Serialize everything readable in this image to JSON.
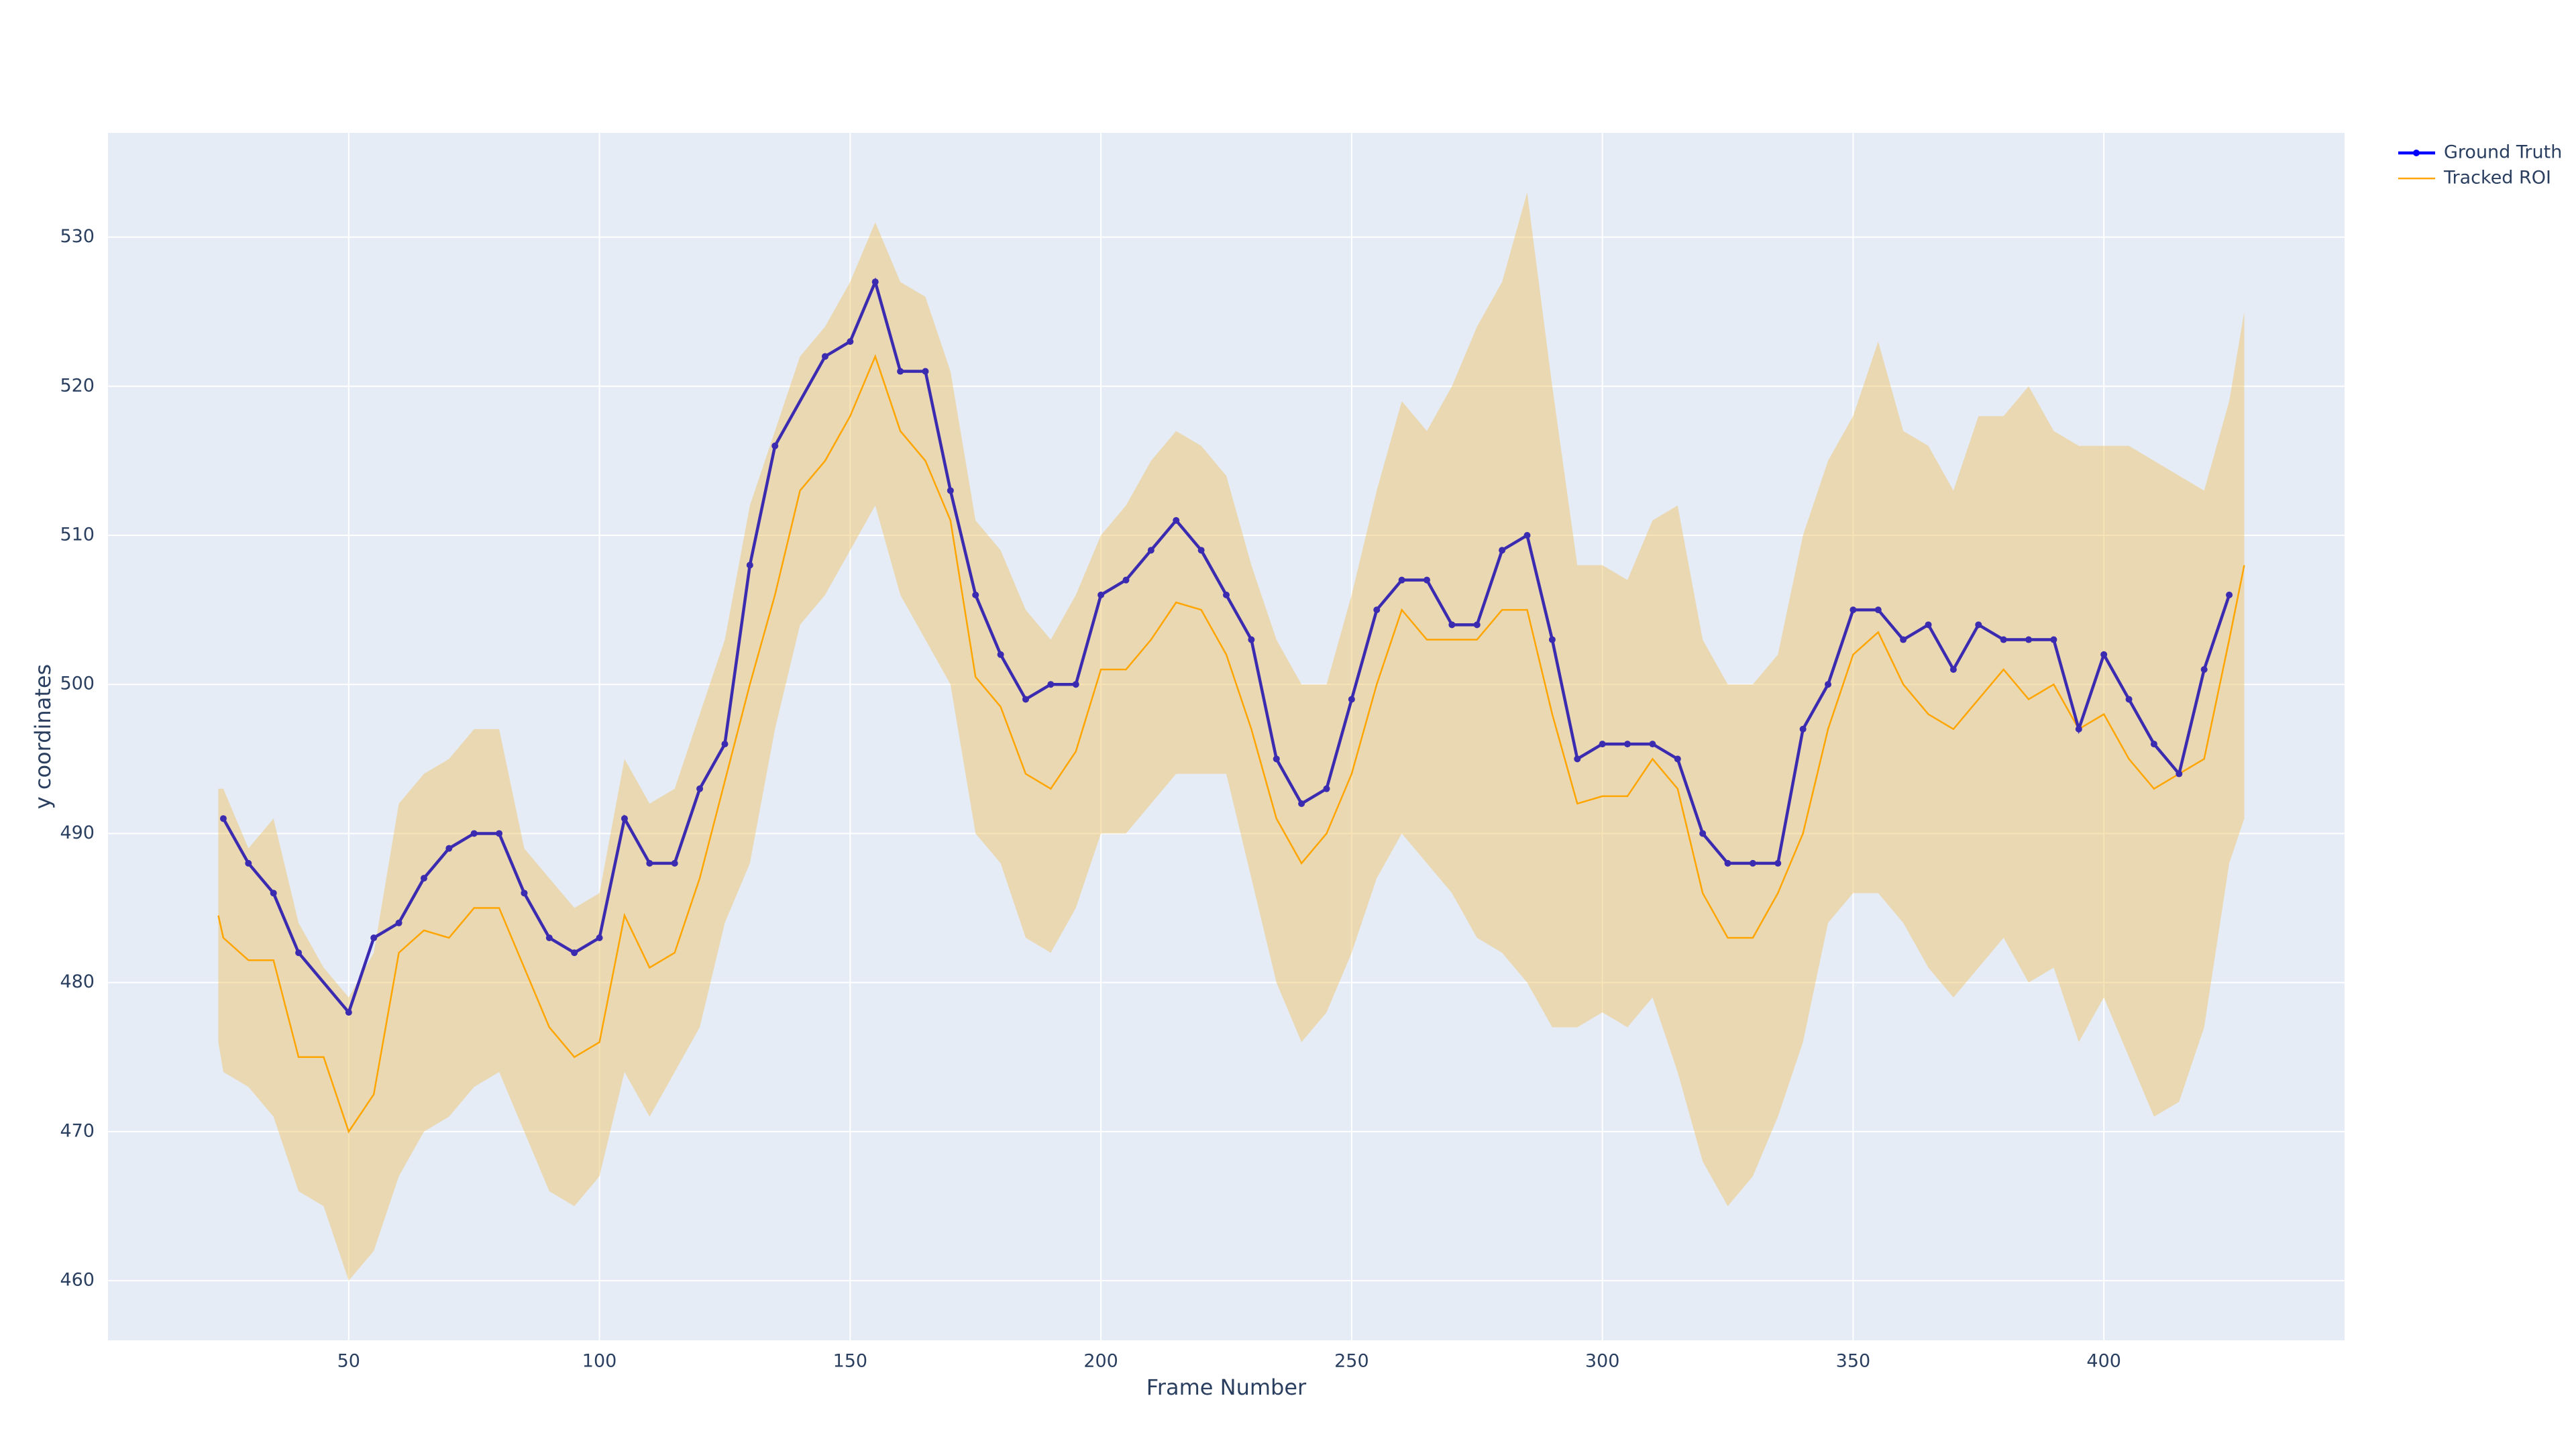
{
  "chart_data": {
    "type": "line",
    "x_label": "Frame Number",
    "y_label": "y coordinates",
    "xlim": [
      2,
      448
    ],
    "xticks": [
      50,
      100,
      150,
      200,
      250,
      300,
      350,
      400
    ],
    "ylim": [
      456,
      537
    ],
    "yticks": [
      460,
      470,
      480,
      490,
      500,
      510,
      520,
      530
    ],
    "grid": true,
    "legend": "top-right",
    "series": [
      {
        "name": "Ground Truth",
        "color": "#3b2bb0",
        "x": [
          25,
          30,
          35,
          40,
          50,
          55,
          60,
          65,
          70,
          75,
          80,
          85,
          90,
          95,
          100,
          105,
          110,
          115,
          120,
          125,
          130,
          135,
          145,
          150,
          155,
          160,
          165,
          170,
          175,
          180,
          185,
          190,
          195,
          200,
          205,
          210,
          215,
          220,
          225,
          230,
          235,
          240,
          245,
          250,
          255,
          260,
          265,
          270,
          275,
          280,
          285,
          290,
          295,
          300,
          305,
          310,
          315,
          320,
          325,
          330,
          335,
          340,
          345,
          350,
          355,
          360,
          365,
          370,
          375,
          380,
          385,
          390,
          395,
          400,
          405,
          410,
          415,
          420,
          425
        ],
        "values": [
          491,
          488,
          486,
          482,
          478,
          483,
          484,
          487,
          489,
          490,
          490,
          486,
          483,
          482,
          483,
          491,
          488,
          488,
          493,
          496,
          508,
          516,
          522,
          523,
          527,
          521,
          521,
          513,
          506,
          502,
          499,
          500,
          500,
          506,
          507,
          509,
          511,
          509,
          506,
          503,
          495,
          492,
          493,
          499,
          505,
          507,
          507,
          504,
          504,
          509,
          510,
          503,
          495,
          496,
          496,
          496,
          495,
          490,
          488,
          488,
          488,
          497,
          500,
          505,
          505,
          503,
          504,
          501,
          504,
          503,
          503,
          503,
          497,
          502,
          499,
          496,
          494,
          501,
          506
        ]
      },
      {
        "name": "Tracked ROI",
        "color": "orange",
        "band_color": "#f0c060",
        "x": [
          24,
          25,
          30,
          35,
          40,
          45,
          50,
          55,
          60,
          65,
          70,
          75,
          80,
          85,
          90,
          95,
          100,
          105,
          110,
          115,
          120,
          125,
          130,
          135,
          140,
          145,
          150,
          155,
          160,
          165,
          170,
          175,
          180,
          185,
          190,
          195,
          200,
          205,
          210,
          215,
          220,
          225,
          230,
          235,
          240,
          245,
          250,
          255,
          260,
          265,
          270,
          275,
          280,
          285,
          290,
          295,
          300,
          305,
          310,
          315,
          320,
          325,
          330,
          335,
          340,
          345,
          350,
          355,
          360,
          365,
          370,
          375,
          380,
          385,
          390,
          395,
          400,
          405,
          410,
          415,
          420,
          425,
          428
        ],
        "values": [
          484.5,
          483,
          481.5,
          481.5,
          475,
          475,
          470,
          472.5,
          482,
          483.5,
          483,
          485,
          485,
          481,
          477,
          475,
          476,
          484.5,
          481,
          482,
          487,
          493.5,
          500,
          506,
          513,
          515,
          518,
          522,
          517,
          515,
          511,
          500.5,
          498.5,
          494,
          493,
          495.5,
          501,
          501,
          503,
          505.5,
          505,
          502,
          497,
          491,
          488,
          490,
          494,
          500,
          505,
          503,
          503,
          503,
          505,
          505,
          498,
          492,
          492.5,
          492.5,
          495,
          493,
          486,
          483,
          483,
          486,
          490,
          497,
          502,
          503.5,
          500,
          498,
          497,
          499,
          501,
          499,
          500,
          497,
          498,
          495,
          493,
          494,
          495,
          503,
          508
        ],
        "upper": [
          493,
          493,
          489,
          491,
          484,
          481,
          479,
          482,
          492,
          494,
          495,
          497,
          497,
          489,
          487,
          485,
          486,
          495,
          492,
          493,
          498,
          503,
          512,
          517,
          522,
          524,
          527,
          531,
          527,
          526,
          521,
          511,
          509,
          505,
          503,
          506,
          510,
          512,
          515,
          517,
          516,
          514,
          508,
          503,
          500,
          500,
          506,
          513,
          519,
          517,
          520,
          524,
          527,
          533,
          520,
          508,
          508,
          507,
          511,
          512,
          503,
          500,
          500,
          502,
          510,
          515,
          518,
          523,
          517,
          516,
          513,
          518,
          518,
          520,
          517,
          516,
          516,
          516,
          515,
          514,
          513,
          519,
          525
        ],
        "lower": [
          476,
          474,
          473,
          471,
          466,
          465,
          460,
          462,
          467,
          470,
          471,
          473,
          474,
          470,
          466,
          465,
          467,
          474,
          471,
          474,
          477,
          484,
          488,
          497,
          504,
          506,
          509,
          512,
          506,
          503,
          500,
          490,
          488,
          483,
          482,
          485,
          490,
          490,
          492,
          494,
          494,
          494,
          487,
          480,
          476,
          478,
          482,
          487,
          490,
          488,
          486,
          483,
          482,
          480,
          477,
          477,
          478,
          477,
          479,
          474,
          468,
          465,
          467,
          471,
          476,
          484,
          486,
          486,
          484,
          481,
          479,
          481,
          483,
          480,
          481,
          476,
          479,
          475,
          471,
          472,
          477,
          488,
          491
        ]
      }
    ]
  }
}
